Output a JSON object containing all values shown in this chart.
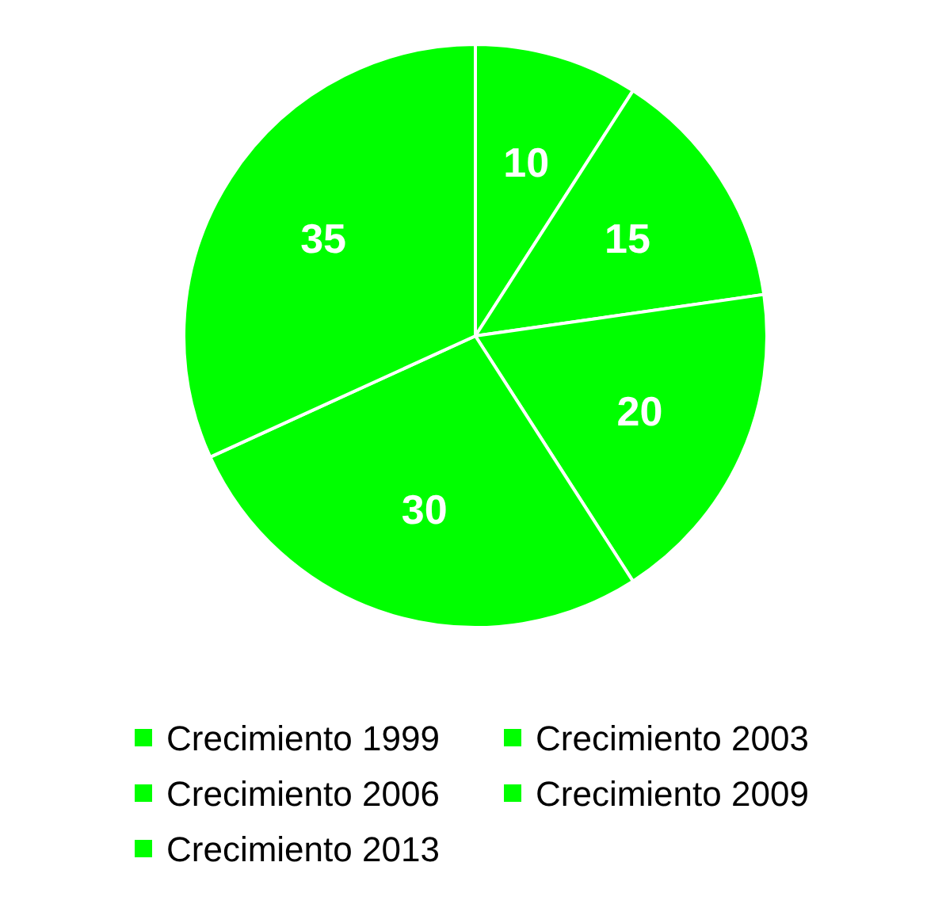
{
  "chart_data": {
    "type": "pie",
    "categories": [
      "Crecimiento 1999",
      "Crecimiento 2003",
      "Crecimiento 2006",
      "Crecimiento 2009",
      "Crecimiento 2013"
    ],
    "values": [
      10,
      15,
      20,
      30,
      35
    ],
    "colors": [
      "#00ff00",
      "#00ff00",
      "#00ff00",
      "#00ff00",
      "#00ff00"
    ],
    "data_labels": true,
    "legend": "bottom"
  }
}
